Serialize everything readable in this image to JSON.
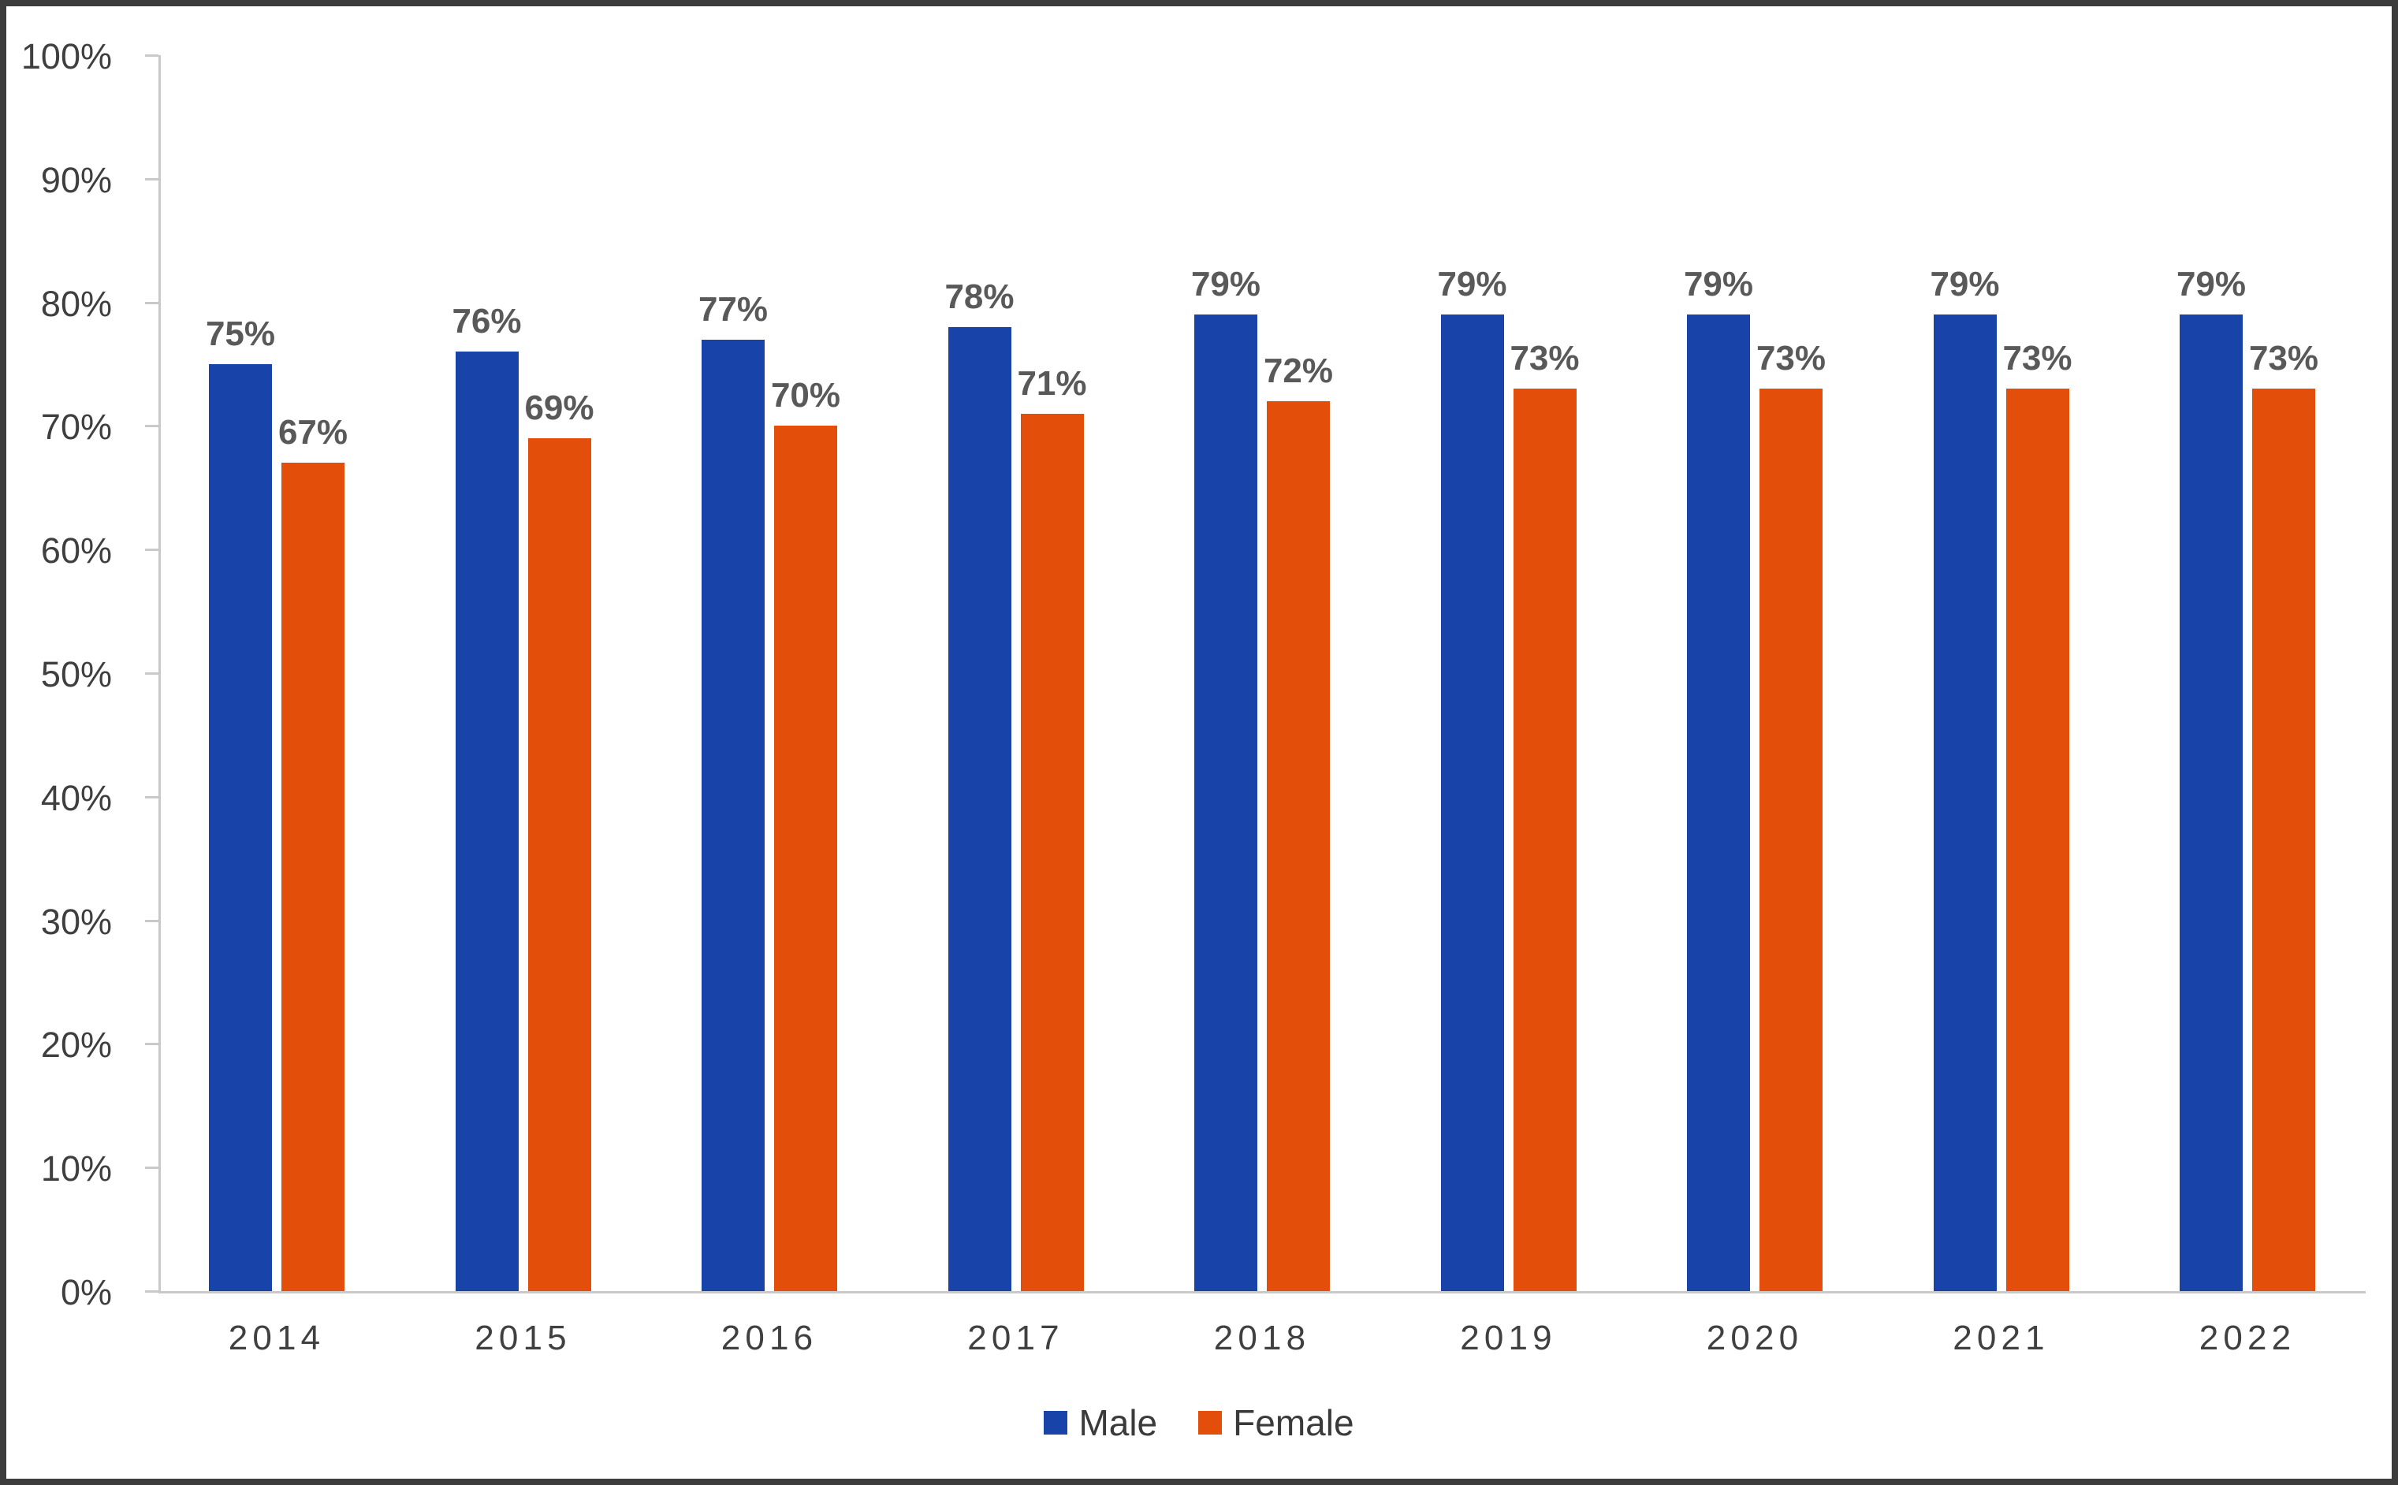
{
  "chart_data": {
    "type": "bar",
    "categories": [
      "2014",
      "2015",
      "2016",
      "2017",
      "2018",
      "2019",
      "2020",
      "2021",
      "2022"
    ],
    "series": [
      {
        "name": "Male",
        "color": "#1843a8",
        "values": [
          75,
          76,
          77,
          78,
          79,
          79,
          79,
          79,
          79
        ]
      },
      {
        "name": "Female",
        "color": "#e44e0b",
        "values": [
          67,
          69,
          70,
          71,
          72,
          73,
          73,
          73,
          73
        ]
      }
    ],
    "value_suffix": "%",
    "data_labels": "on",
    "title": "",
    "xlabel": "",
    "ylabel": "",
    "ylim": [
      0,
      100
    ],
    "y_tick_labels": [
      "0%",
      "10%",
      "20%",
      "30%",
      "40%",
      "50%",
      "60%",
      "70%",
      "80%",
      "90%",
      "100%"
    ],
    "grid": "off",
    "legend_position": "bottom"
  },
  "colors": {
    "male_bar": "#1843a8",
    "female_bar": "#e44e0b",
    "data_label": "#595959",
    "tick_label": "#3f3f3f",
    "category_label": "#404040",
    "axis_line": "#c9c9c9",
    "frame_border": "#3c3c3c",
    "background": "#ffffff"
  }
}
